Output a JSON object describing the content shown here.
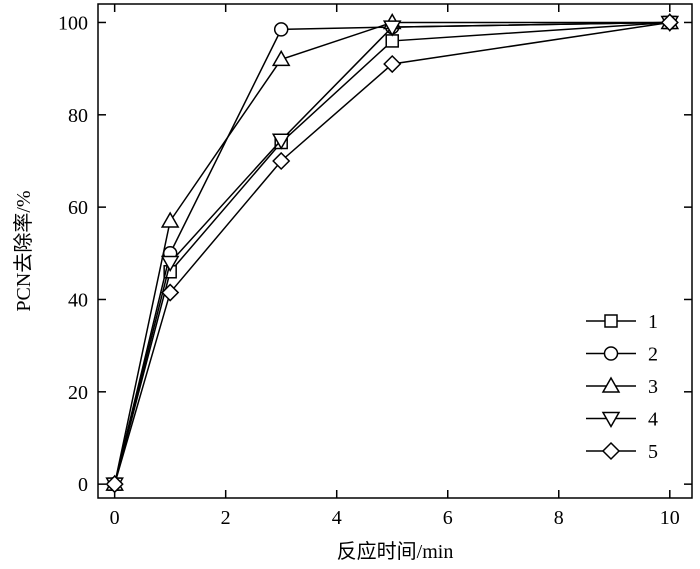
{
  "chart_data": {
    "type": "line",
    "title": "",
    "xlabel": "反应时间/min",
    "ylabel": "PCN去除率/%",
    "x": [
      0,
      1,
      3,
      5,
      10
    ],
    "xlim": [
      -0.3,
      10.4
    ],
    "ylim": [
      -3,
      104
    ],
    "xticks": [
      0,
      2,
      4,
      6,
      8,
      10
    ],
    "yticks": [
      0,
      20,
      40,
      60,
      80,
      100
    ],
    "grid": false,
    "legend_position": "bottom-right",
    "marker_fill": "#ffffff",
    "line_color": "#000000",
    "series": [
      {
        "name": "1",
        "marker": "square",
        "values": [
          0,
          46,
          74,
          96,
          100
        ]
      },
      {
        "name": "2",
        "marker": "circle",
        "values": [
          0,
          50,
          98.5,
          99,
          100
        ]
      },
      {
        "name": "3",
        "marker": "triangle-up",
        "values": [
          0,
          57,
          92,
          100,
          100
        ]
      },
      {
        "name": "4",
        "marker": "triangle-down",
        "values": [
          0,
          48,
          74.5,
          99,
          100
        ]
      },
      {
        "name": "5",
        "marker": "diamond",
        "values": [
          0,
          41.5,
          70,
          91,
          100
        ]
      }
    ]
  }
}
